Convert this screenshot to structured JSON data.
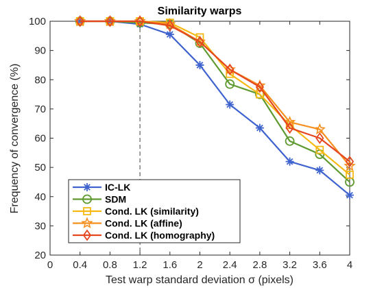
{
  "chart_data": {
    "type": "line",
    "title": "Similarity warps",
    "xlabel": "Test warp standard deviation σ (pixels)",
    "ylabel": "Frequency of convergence (%)",
    "xlim": [
      0,
      4
    ],
    "ylim": [
      20,
      100
    ],
    "xticks": [
      "0",
      "0.4",
      "0.8",
      "1.2",
      "1.6",
      "2",
      "2.4",
      "2.8",
      "3.2",
      "3.6",
      "4"
    ],
    "yticks": [
      "20",
      "30",
      "40",
      "50",
      "60",
      "70",
      "80",
      "90",
      "100"
    ],
    "grid": false,
    "legend_position": "bottom-left",
    "reference_line": {
      "x": 1.2,
      "style": "dashed"
    },
    "x": [
      0.4,
      0.8,
      1.2,
      1.6,
      2.0,
      2.4,
      2.8,
      3.2,
      3.6,
      4.0
    ],
    "series": [
      {
        "name": "IC-LK",
        "color": "#3E63CE",
        "marker": "asterisk",
        "values": [
          100,
          100,
          99,
          95.5,
          85,
          71.5,
          63.5,
          52,
          49,
          40.5
        ]
      },
      {
        "name": "SDM",
        "color": "#5E9A2F",
        "marker": "circle",
        "values": [
          100,
          100,
          99.5,
          99,
          92.5,
          78.5,
          75,
          59,
          54.5,
          45
        ]
      },
      {
        "name": "Cond. LK (similarity)",
        "color": "#F6B914",
        "marker": "square",
        "values": [
          100,
          100,
          100,
          99.5,
          94.5,
          82,
          75,
          64.5,
          56,
          47.5
        ]
      },
      {
        "name": "Cond. LK (affine)",
        "color": "#F58F1E",
        "marker": "star",
        "values": [
          100,
          100,
          100,
          99,
          93,
          83.5,
          78,
          65.5,
          63,
          50.5
        ]
      },
      {
        "name": "Cond. LK (homography)",
        "color": "#E5461E",
        "marker": "diamond",
        "values": [
          100,
          100,
          100,
          98.5,
          93,
          83.5,
          77.5,
          63.5,
          60,
          52
        ]
      }
    ]
  }
}
